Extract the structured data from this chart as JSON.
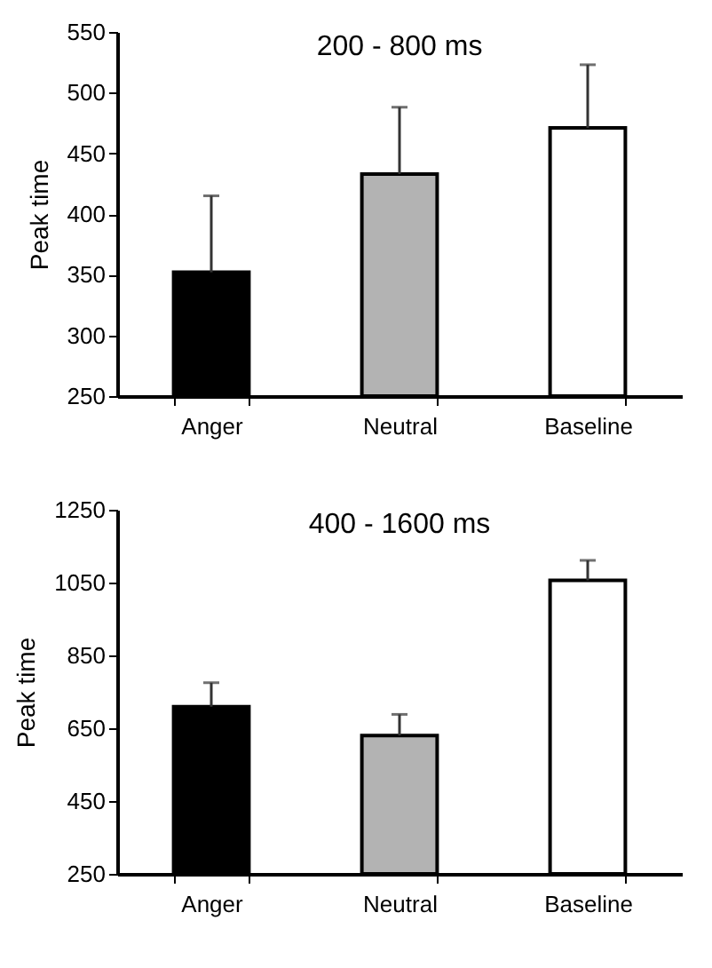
{
  "chart_data": [
    {
      "type": "bar",
      "title": "200 - 800 ms",
      "ylabel": "Peak time",
      "categories": [
        "Anger",
        "Neutral",
        "Baseline"
      ],
      "values": [
        352,
        433,
        471
      ],
      "colors": [
        "#000000",
        "#b3b3b3",
        "#ffffff"
      ],
      "errors": [
        [
          352,
          415
        ],
        [
          433,
          488
        ],
        [
          471,
          523
        ]
      ],
      "ylim": [
        250,
        550
      ],
      "yticks": [
        250,
        300,
        350,
        400,
        450,
        500,
        550
      ],
      "grid": false
    },
    {
      "type": "bar",
      "title": "400 - 1600 ms",
      "ylabel": "Peak time",
      "categories": [
        "Anger",
        "Neutral",
        "Baseline"
      ],
      "values": [
        709,
        630,
        1056
      ],
      "colors": [
        "#000000",
        "#b3b3b3",
        "#ffffff"
      ],
      "errors": [
        [
          709,
          775
        ],
        [
          630,
          688
        ],
        [
          1056,
          1111
        ]
      ],
      "ylim": [
        250,
        1250
      ],
      "yticks": [
        250,
        450,
        650,
        850,
        1050,
        1250
      ],
      "grid": false
    }
  ]
}
